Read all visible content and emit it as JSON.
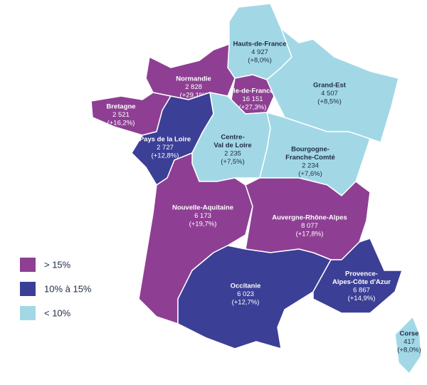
{
  "legend": [
    {
      "label": "> 15%",
      "color": "#8e3f93"
    },
    {
      "label": "10% à 15%",
      "color": "#3c3f96"
    },
    {
      "label": "< 10%",
      "color": "#a2d8e6"
    }
  ],
  "regions": [
    {
      "name_lines": [
        "Hauts-de-France"
      ],
      "count": "4 927",
      "change": "(+8,0%)",
      "color": "#a2d8e6"
    },
    {
      "name_lines": [
        "Normandie"
      ],
      "count": "2 828",
      "change": "(+29,1%)",
      "color": "#8e3f93"
    },
    {
      "name_lines": [
        "Île-de-France"
      ],
      "count": "16 151",
      "change": "(+27,3%)",
      "color": "#8e3f93"
    },
    {
      "name_lines": [
        "Grand-Est"
      ],
      "count": "4 507",
      "change": "(+8,5%)",
      "color": "#a2d8e6"
    },
    {
      "name_lines": [
        "Bretagne"
      ],
      "count": "2 521",
      "change": "(+16,2%)",
      "color": "#8e3f93"
    },
    {
      "name_lines": [
        "Pays de la Loire"
      ],
      "count": "2 727",
      "change": "(+12,8%)",
      "color": "#3c3f96"
    },
    {
      "name_lines": [
        "Centre-",
        "Val de Loire"
      ],
      "count": "2 235",
      "change": "(+7,5%)",
      "color": "#a2d8e6"
    },
    {
      "name_lines": [
        "Bourgogne-",
        "Franche-Comté"
      ],
      "count": "2 234",
      "change": "(+7,6%)",
      "color": "#a2d8e6"
    },
    {
      "name_lines": [
        "Nouvelle-Aquitaine"
      ],
      "count": "6 173",
      "change": "(+19,7%)",
      "color": "#8e3f93"
    },
    {
      "name_lines": [
        "Auvergne-Rhône-Alpes"
      ],
      "count": "8 077",
      "change": "(+17,8%)",
      "color": "#8e3f93"
    },
    {
      "name_lines": [
        "Occitanie"
      ],
      "count": "6 023",
      "change": "(+12,7%)",
      "color": "#3c3f96"
    },
    {
      "name_lines": [
        "Provence-",
        "Alpes-Côte d'Azur"
      ],
      "count": "6 867",
      "change": "(+14,9%)",
      "color": "#3c3f96"
    },
    {
      "name_lines": [
        "Corse"
      ],
      "count": "417",
      "change": "(+8,0%)",
      "color": "#a2d8e6"
    }
  ]
}
